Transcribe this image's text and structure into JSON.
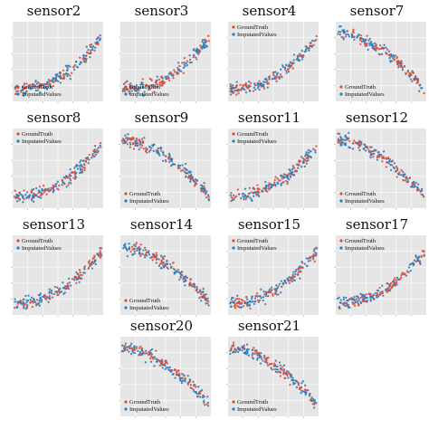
{
  "figure": {
    "legend_labels": [
      "GroundTruth",
      "ImputatedValues"
    ],
    "colors": {
      "ground_truth": "#e34a33",
      "imputed": "#2b7bba",
      "plot_bg": "#e6e6e6",
      "grid": "#ffffff"
    }
  },
  "chart_data": [
    {
      "type": "scatter",
      "title": "sensor2",
      "trend": "increasing",
      "legend_position": "lower-left",
      "series": [
        {
          "name": "GroundTruth"
        },
        {
          "name": "ImputatedValues"
        }
      ]
    },
    {
      "type": "scatter",
      "title": "sensor3",
      "trend": "increasing",
      "legend_position": "lower-left",
      "series": [
        {
          "name": "GroundTruth"
        },
        {
          "name": "ImputatedValues"
        }
      ]
    },
    {
      "type": "scatter",
      "title": "sensor4",
      "trend": "increasing",
      "legend_position": "top-left",
      "series": [
        {
          "name": "GroundTruth"
        },
        {
          "name": "ImputatedValues"
        }
      ]
    },
    {
      "type": "scatter",
      "title": "sensor7",
      "trend": "decreasing",
      "legend_position": "lower-left",
      "series": [
        {
          "name": "GroundTruth"
        },
        {
          "name": "ImputatedValues"
        }
      ]
    },
    {
      "type": "scatter",
      "title": "sensor8",
      "trend": "increasing",
      "legend_position": "top-left",
      "series": [
        {
          "name": "GroundTruth"
        },
        {
          "name": "ImputatedValues"
        }
      ]
    },
    {
      "type": "scatter",
      "title": "sensor9",
      "trend": "decreasing",
      "legend_position": "lower-left",
      "series": [
        {
          "name": "GroundTruth"
        },
        {
          "name": "ImputatedValues"
        }
      ]
    },
    {
      "type": "scatter",
      "title": "sensor11",
      "trend": "increasing",
      "legend_position": "top-left",
      "series": [
        {
          "name": "GroundTruth"
        },
        {
          "name": "ImputatedValues"
        }
      ]
    },
    {
      "type": "scatter",
      "title": "sensor12",
      "trend": "decreasing",
      "legend_position": "lower-left",
      "series": [
        {
          "name": "GroundTruth"
        },
        {
          "name": "ImputatedValues"
        }
      ]
    },
    {
      "type": "scatter",
      "title": "sensor13",
      "trend": "increasing",
      "legend_position": "top-left",
      "series": [
        {
          "name": "GroundTruth"
        },
        {
          "name": "ImputatedValues"
        }
      ]
    },
    {
      "type": "scatter",
      "title": "sensor14",
      "trend": "decreasing",
      "legend_position": "lower-left",
      "series": [
        {
          "name": "GroundTruth"
        },
        {
          "name": "ImputatedValues"
        }
      ]
    },
    {
      "type": "scatter",
      "title": "sensor15",
      "trend": "increasing",
      "legend_position": "top-left",
      "series": [
        {
          "name": "GroundTruth"
        },
        {
          "name": "ImputatedValues"
        }
      ]
    },
    {
      "type": "scatter",
      "title": "sensor17",
      "trend": "increasing",
      "legend_position": "top-left",
      "series": [
        {
          "name": "GroundTruth"
        },
        {
          "name": "ImputatedValues"
        }
      ]
    },
    {
      "type": "scatter",
      "title": "sensor20",
      "trend": "decreasing",
      "legend_position": "lower-left",
      "series": [
        {
          "name": "GroundTruth"
        },
        {
          "name": "ImputatedValues"
        }
      ]
    },
    {
      "type": "scatter",
      "title": "sensor21",
      "trend": "decreasing",
      "legend_position": "lower-left",
      "series": [
        {
          "name": "GroundTruth"
        },
        {
          "name": "ImputatedValues"
        }
      ]
    }
  ]
}
